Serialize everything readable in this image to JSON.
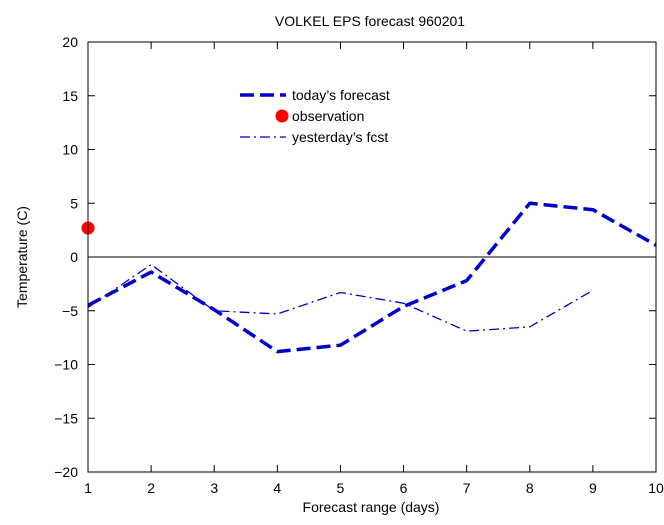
{
  "chart_data": {
    "type": "line",
    "title": "VOLKEL  EPS forecast 960201",
    "xlabel": "Forecast range (days)",
    "ylabel": "Temperature (C)",
    "xlim": [
      1,
      10
    ],
    "ylim": [
      -20,
      20
    ],
    "xticks": [
      1,
      2,
      3,
      4,
      5,
      6,
      7,
      8,
      9,
      10
    ],
    "yticks": [
      -20,
      -15,
      -10,
      -5,
      0,
      5,
      10,
      15,
      20
    ],
    "ytick_labels": [
      "−20",
      "−15",
      "−10",
      "−5",
      "0",
      "5",
      "10",
      "15",
      "20"
    ],
    "zero_line": true,
    "grid": false,
    "legend_position": "top-center",
    "series": [
      {
        "name": "today’s forecast",
        "style": "thick-dashed",
        "color": "#0000cc",
        "x": [
          1,
          2,
          3,
          4,
          5,
          6,
          7,
          8,
          9,
          10
        ],
        "y": [
          -4.5,
          -1.4,
          -4.9,
          -8.8,
          -8.2,
          -4.6,
          -2.2,
          5.0,
          4.4,
          1.1
        ]
      },
      {
        "name": "observation",
        "style": "marker",
        "color": "#ff0000",
        "x": [
          1
        ],
        "y": [
          2.7
        ]
      },
      {
        "name": "yesterday’s fcst",
        "style": "thin-dashdot",
        "color": "#0000cc",
        "x": [
          1,
          2,
          3,
          4,
          5,
          6,
          7,
          8,
          9
        ],
        "y": [
          -4.7,
          -0.7,
          -5.0,
          -5.3,
          -3.3,
          -4.3,
          -6.9,
          -6.5,
          -3.1
        ]
      }
    ]
  }
}
